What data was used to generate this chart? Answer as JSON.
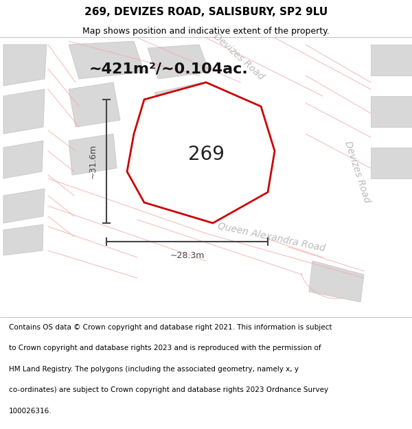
{
  "title": "269, DEVIZES ROAD, SALISBURY, SP2 9LU",
  "subtitle": "Map shows position and indicative extent of the property.",
  "area_text": "~421m²/~0.104ac.",
  "plot_number": "269",
  "dim_width": "~28.3m",
  "dim_height": "~31.6m",
  "footer_lines": [
    "Contains OS data © Crown copyright and database right 2021. This information is subject",
    "to Crown copyright and database rights 2023 and is reproduced with the permission of",
    "HM Land Registry. The polygons (including the associated geometry, namely x, y",
    "co-ordinates) are subject to Crown copyright and database rights 2023 Ordnance Survey",
    "100026316."
  ],
  "map_bg": "#f0eeee",
  "building_color": "#d8d8d8",
  "building_edge": "#c8c8c8",
  "road_color": "#ffffff",
  "plot_fill": "#ffffff",
  "plot_outline": "#cc0000",
  "dim_line_color": "#444444",
  "pink_color": "#f5aaaa",
  "road_label_color": "#bbbbbb",
  "title_fontsize": 11,
  "subtitle_fontsize": 9,
  "area_fontsize": 16,
  "plot_num_fontsize": 20,
  "dim_fontsize": 9,
  "road_label_fontsize": 10,
  "footer_fontsize": 7.5
}
